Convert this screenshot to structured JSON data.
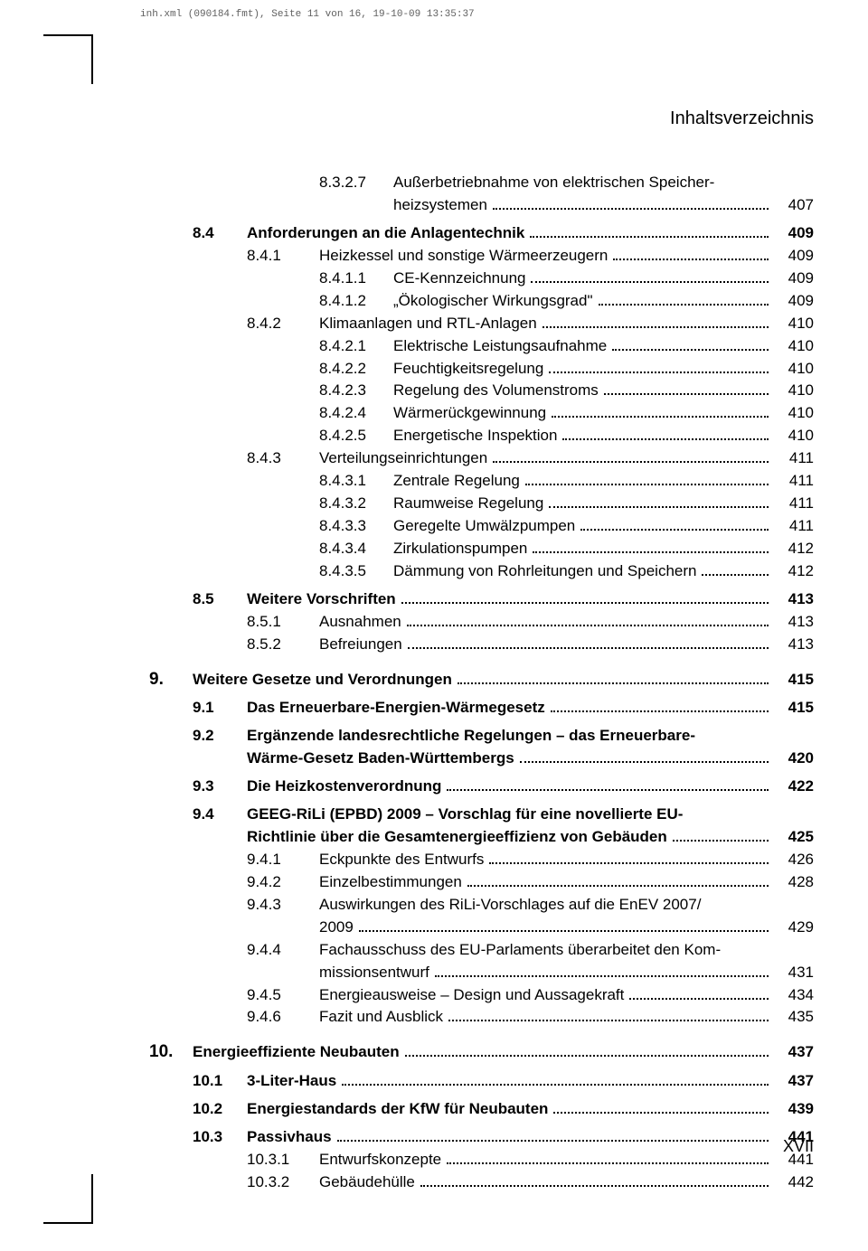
{
  "header": "inh.xml (090184.fmt), Seite 11 von 16, 19-10-09 13:35:37",
  "title": "Inhaltsverzeichnis",
  "footer": "XVII",
  "e": [
    {
      "lvl": 3,
      "n": "8.3.2.7",
      "t": "Außerbetriebnahme von elektrischen Speicherheizsystemen",
      "p": "407",
      "hyph": true,
      "split": "Außerbetriebnahme von elektrischen Speicher-|heizsystemen"
    },
    {
      "lvl": 1,
      "n": "8.4",
      "t": "Anforderungen an die Anlagentechnik",
      "p": "409",
      "b": true,
      "gapBefore": "s"
    },
    {
      "lvl": 2,
      "n": "8.4.1",
      "t": "Heizkessel und sonstige Wärmeerzeugern",
      "p": "409"
    },
    {
      "lvl": 3,
      "n": "8.4.1.1",
      "t": "CE-Kennzeichnung",
      "p": "409"
    },
    {
      "lvl": 3,
      "n": "8.4.1.2",
      "t": "„Ökologischer Wirkungsgrad\"",
      "p": "409"
    },
    {
      "lvl": 2,
      "n": "8.4.2",
      "t": "Klimaanlagen und RTL-Anlagen",
      "p": "410"
    },
    {
      "lvl": 3,
      "n": "8.4.2.1",
      "t": "Elektrische Leistungsaufnahme",
      "p": "410"
    },
    {
      "lvl": 3,
      "n": "8.4.2.2",
      "t": "Feuchtigkeitsregelung",
      "p": "410"
    },
    {
      "lvl": 3,
      "n": "8.4.2.3",
      "t": "Regelung des Volumenstroms",
      "p": "410"
    },
    {
      "lvl": 3,
      "n": "8.4.2.4",
      "t": "Wärmerückgewinnung",
      "p": "410"
    },
    {
      "lvl": 3,
      "n": "8.4.2.5",
      "t": "Energetische Inspektion",
      "p": "410"
    },
    {
      "lvl": 2,
      "n": "8.4.3",
      "t": "Verteilungseinrichtungen",
      "p": "411"
    },
    {
      "lvl": 3,
      "n": "8.4.3.1",
      "t": "Zentrale Regelung",
      "p": "411"
    },
    {
      "lvl": 3,
      "n": "8.4.3.2",
      "t": "Raumweise Regelung",
      "p": "411"
    },
    {
      "lvl": 3,
      "n": "8.4.3.3",
      "t": "Geregelte Umwälzpumpen",
      "p": "411"
    },
    {
      "lvl": 3,
      "n": "8.4.3.4",
      "t": "Zirkulationspumpen",
      "p": "412"
    },
    {
      "lvl": 3,
      "n": "8.4.3.5",
      "t": "Dämmung von Rohrleitungen und Speichern",
      "p": "412"
    },
    {
      "lvl": 1,
      "n": "8.5",
      "t": "Weitere Vorschriften",
      "p": "413",
      "b": true,
      "gapBefore": "s"
    },
    {
      "lvl": 2,
      "n": "8.5.1",
      "t": "Ausnahmen",
      "p": "413"
    },
    {
      "lvl": 2,
      "n": "8.5.2",
      "t": "Befreiungen",
      "p": "413"
    },
    {
      "lvl": 0,
      "n": "9.",
      "t": "Weitere Gesetze und Verordnungen",
      "p": "415",
      "b": true,
      "gapBefore": "m"
    },
    {
      "lvl": 1,
      "n": "9.1",
      "t": "Das Erneuerbare-Energien-Wärmegesetz",
      "p": "415",
      "b": true,
      "gapBefore": "s"
    },
    {
      "lvl": 1,
      "n": "9.2",
      "t": "Ergänzende landesrechtliche Regelungen – das Erneuerbare-Wärme-Gesetz Baden-Württembergs",
      "p": "420",
      "b": true,
      "gapBefore": "s",
      "hyph": true,
      "split": "Ergänzende landesrechtliche Regelungen – das Erneuerbare-|Wärme-Gesetz Baden-Württembergs"
    },
    {
      "lvl": 1,
      "n": "9.3",
      "t": "Die Heizkostenverordnung",
      "p": "422",
      "b": true,
      "gapBefore": "s"
    },
    {
      "lvl": 1,
      "n": "9.4",
      "t": "GEEG-RiLi (EPBD) 2009 – Vorschlag für eine novellierte EU-Richtlinie über die Gesamtenergieeffizienz von Gebäuden",
      "p": "425",
      "b": true,
      "gapBefore": "s",
      "hyph": true,
      "split": "GEEG-RiLi (EPBD) 2009 – Vorschlag für eine novellierte EU-|Richtlinie über die Gesamtenergieeffizienz von Gebäuden"
    },
    {
      "lvl": 2,
      "n": "9.4.1",
      "t": "Eckpunkte des Entwurfs",
      "p": "426"
    },
    {
      "lvl": 2,
      "n": "9.4.2",
      "t": "Einzelbestimmungen",
      "p": "428"
    },
    {
      "lvl": 2,
      "n": "9.4.3",
      "t": "Auswirkungen des RiLi-Vorschlages auf die EnEV 2007/2009",
      "p": "429",
      "hyph": true,
      "split": "Auswirkungen des RiLi-Vorschlages auf die EnEV 2007/|2009"
    },
    {
      "lvl": 2,
      "n": "9.4.4",
      "t": "Fachausschuss des EU-Parlaments überarbeitet den Kommissionsentwurf",
      "p": "431",
      "hyph": true,
      "split": "Fachausschuss des EU-Parlaments überarbeitet den Kom-|missionsentwurf"
    },
    {
      "lvl": 2,
      "n": "9.4.5",
      "t": "Energieausweise – Design und Aussagekraft",
      "p": "434"
    },
    {
      "lvl": 2,
      "n": "9.4.6",
      "t": "Fazit und Ausblick",
      "p": "435"
    },
    {
      "lvl": 0,
      "n": "10.",
      "t": "Energieeffiziente Neubauten",
      "p": "437",
      "b": true,
      "gapBefore": "m"
    },
    {
      "lvl": 1,
      "n": "10.1",
      "t": "3-Liter-Haus",
      "p": "437",
      "b": true,
      "gapBefore": "s"
    },
    {
      "lvl": 1,
      "n": "10.2",
      "t": "Energiestandards der KfW für Neubauten",
      "p": "439",
      "b": true,
      "gapBefore": "s"
    },
    {
      "lvl": 1,
      "n": "10.3",
      "t": "Passivhaus",
      "p": "441",
      "b": true,
      "gapBefore": "s"
    },
    {
      "lvl": 2,
      "n": "10.3.1",
      "t": "Entwurfskonzepte",
      "p": "441"
    },
    {
      "lvl": 2,
      "n": "10.3.2",
      "t": "Gebäudehülle",
      "p": "442"
    }
  ]
}
